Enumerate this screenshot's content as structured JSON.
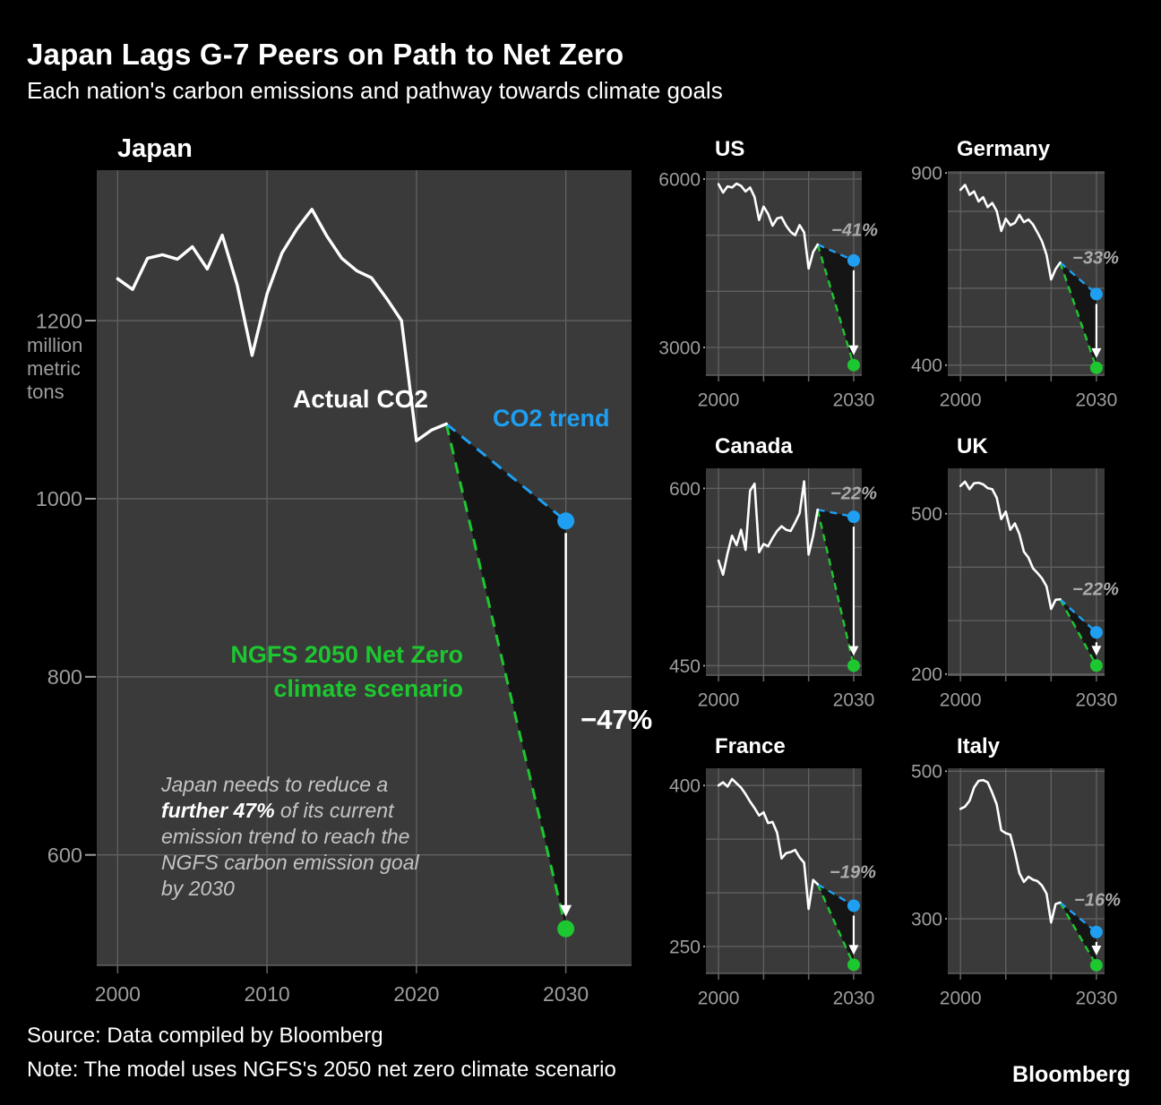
{
  "header": {
    "title": "Japan Lags G-7 Peers on Path to Net Zero",
    "subtitle": "Each nation's carbon emissions and pathway towards climate goals"
  },
  "annotations": {
    "actual_label": "Actual CO2",
    "trend_label": "CO2 trend",
    "ngfs_line1": "NGFS 2050 Net Zero",
    "ngfs_line2": "climate scenario",
    "note_part1": "Japan needs to reduce a ",
    "note_part2": "further 47%",
    "note_part3": " of its current emission trend to reach the NGFS carbon emission goal by 2030"
  },
  "footer": {
    "source": "Source: Data compiled by Bloomberg",
    "note": "Note: The model uses NGFS's 2050 net zero climate scenario",
    "brand": "Bloomberg"
  },
  "colors": {
    "background": "#000000",
    "plot_bg": "#3a3a3a",
    "grid": "#616161",
    "axis_text": "#9d9d9d",
    "actual_line": "#ffffff",
    "trend_line": "#1e9ff2",
    "ngfs_line": "#1dc72f",
    "wedge_fill": "#151515",
    "pct_text": "#ababab",
    "note_text": "#c4c4c4"
  },
  "chart_data": [
    {
      "id": "japan",
      "type": "line",
      "title": "Japan",
      "pct_label": "−47%",
      "ylabel": "million metric tons",
      "unit_lines": [
        "million",
        "metric",
        "tons"
      ],
      "years_start": 2000,
      "actual": [
        1247,
        1235,
        1270,
        1274,
        1269,
        1283,
        1258,
        1296,
        1240,
        1161,
        1230,
        1276,
        1303,
        1325,
        1295,
        1270,
        1256,
        1248,
        1225,
        1200,
        1065,
        1077,
        1084
      ],
      "trend_end_2030": 975,
      "ngfs_end_2030": 517,
      "x_axis": {
        "min": 1998.6,
        "max": 2034.4,
        "grid": [
          2000,
          2010,
          2020,
          2030
        ],
        "labeled": [
          2000,
          2010,
          2020,
          2030
        ]
      },
      "y_axis": {
        "min": 476,
        "max": 1369,
        "grid": [
          600,
          800,
          1000,
          1200
        ],
        "labeled": [
          600,
          800,
          1000,
          1200
        ]
      }
    },
    {
      "id": "us",
      "type": "line",
      "title": "US",
      "pct_label": "−41%",
      "years_start": 2000,
      "actual": [
        5910,
        5760,
        5870,
        5850,
        5920,
        5880,
        5780,
        5850,
        5680,
        5270,
        5510,
        5380,
        5170,
        5300,
        5320,
        5170,
        5060,
        5000,
        5180,
        5050,
        4405,
        4700,
        4835
      ],
      "trend_end_2030": 4550,
      "ngfs_end_2030": 2685,
      "x_axis": {
        "min": 1997.2,
        "max": 2031.8,
        "grid": [
          2000,
          2010,
          2020,
          2030
        ],
        "labeled": [
          2000,
          2030
        ]
      },
      "y_axis": {
        "min": 2505,
        "max": 6144,
        "grid": [
          3000,
          4000,
          5000,
          6000
        ],
        "labeled": [
          3000,
          6000
        ]
      }
    },
    {
      "id": "germany",
      "type": "line",
      "title": "Germany",
      "pct_label": "−33%",
      "years_start": 2000,
      "actual": [
        856,
        869,
        843,
        852,
        826,
        837,
        811,
        822,
        801,
        749,
        781,
        764,
        770,
        791,
        772,
        779,
        766,
        745,
        722,
        687,
        623,
        650,
        667
      ],
      "trend_end_2030": 585,
      "ngfs_end_2030": 393,
      "x_axis": {
        "min": 1997.2,
        "max": 2031.8,
        "grid": [
          2000,
          2010,
          2020,
          2030
        ],
        "labeled": [
          2000,
          2030
        ]
      },
      "y_axis": {
        "min": 374,
        "max": 905,
        "grid": [
          400,
          500,
          600,
          700,
          800,
          900
        ],
        "labeled": [
          400,
          900
        ]
      }
    },
    {
      "id": "canada",
      "type": "line",
      "title": "Canada",
      "pct_label": "−22%",
      "years_start": 2000,
      "actual": [
        539,
        527,
        545,
        560,
        552,
        565,
        548,
        598,
        604,
        546,
        553,
        551,
        558,
        564,
        568,
        565,
        564,
        571,
        579,
        606,
        544,
        560,
        582
      ],
      "trend_end_2030": 576,
      "ngfs_end_2030": 450,
      "x_axis": {
        "min": 1997.2,
        "max": 2031.8,
        "grid": [
          2000,
          2010,
          2020,
          2030
        ],
        "labeled": [
          2000,
          2030
        ]
      },
      "y_axis": {
        "min": 442,
        "max": 617,
        "grid": [
          450,
          500,
          550,
          600
        ],
        "labeled": [
          450,
          600
        ]
      }
    },
    {
      "id": "uk",
      "type": "line",
      "title": "UK",
      "pct_label": "−22%",
      "years_start": 2000,
      "actual": [
        552,
        560,
        546,
        557,
        558,
        555,
        548,
        546,
        530,
        490,
        504,
        470,
        482,
        462,
        429,
        418,
        398,
        389,
        379,
        364,
        322,
        339,
        340
      ],
      "trend_end_2030": 278,
      "ngfs_end_2030": 216,
      "x_axis": {
        "min": 1997.2,
        "max": 2031.8,
        "grid": [
          2000,
          2010,
          2020,
          2030
        ],
        "labeled": [
          2000,
          2030
        ]
      },
      "y_axis": {
        "min": 198,
        "max": 585,
        "grid": [
          200,
          300,
          400,
          500
        ],
        "labeled": [
          200,
          500
        ]
      }
    },
    {
      "id": "france",
      "type": "line",
      "title": "France",
      "pct_label": "−19%",
      "years_start": 2000,
      "actual": [
        400,
        403,
        399,
        406,
        402,
        398,
        392,
        385,
        379,
        372,
        375,
        365,
        366,
        356,
        332,
        337,
        338,
        340,
        333,
        328,
        285,
        312,
        308
      ],
      "trend_end_2030": 288,
      "ngfs_end_2030": 233,
      "x_axis": {
        "min": 1997.2,
        "max": 2031.8,
        "grid": [
          2000,
          2010,
          2020,
          2030
        ],
        "labeled": [
          2000,
          2030
        ]
      },
      "y_axis": {
        "min": 225,
        "max": 416,
        "grid": [
          250,
          300,
          350,
          400
        ],
        "labeled": [
          250,
          400
        ]
      }
    },
    {
      "id": "italy",
      "type": "line",
      "title": "Italy",
      "pct_label": "−16%",
      "years_start": 2000,
      "actual": [
        449,
        452,
        460,
        478,
        487,
        488,
        485,
        471,
        455,
        420,
        416,
        414,
        390,
        362,
        350,
        357,
        353,
        351,
        345,
        334,
        295,
        320,
        322
      ],
      "trend_end_2030": 282,
      "ngfs_end_2030": 237,
      "x_axis": {
        "min": 1997.2,
        "max": 2031.8,
        "grid": [
          2000,
          2010,
          2020,
          2030
        ],
        "labeled": [
          2000,
          2030
        ]
      },
      "y_axis": {
        "min": 226,
        "max": 504,
        "grid": [
          300,
          400,
          500
        ],
        "labeled": [
          300,
          500
        ]
      }
    }
  ]
}
